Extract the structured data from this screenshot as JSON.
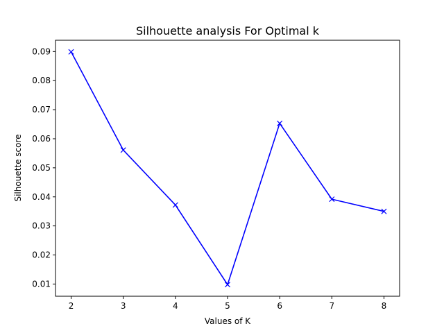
{
  "chart_data": {
    "type": "line",
    "title": "Silhouette analysis For Optimal k",
    "xlabel": "Values of K",
    "ylabel": "Silhouette score",
    "x": [
      2,
      3,
      4,
      5,
      6,
      7,
      8
    ],
    "series": [
      {
        "values": [
          0.0899,
          0.0561,
          0.0372,
          0.0098,
          0.0653,
          0.0392,
          0.035
        ],
        "color": "#0000ff",
        "marker": "x"
      }
    ],
    "xlim": [
      1.7,
      8.3
    ],
    "ylim": [
      0.0058,
      0.0939
    ],
    "x_ticks": [
      "2",
      "3",
      "4",
      "5",
      "6",
      "7",
      "8"
    ],
    "y_ticks": [
      "0.01",
      "0.02",
      "0.03",
      "0.04",
      "0.05",
      "0.06",
      "0.07",
      "0.08",
      "0.09"
    ],
    "grid": false,
    "legend": false
  }
}
